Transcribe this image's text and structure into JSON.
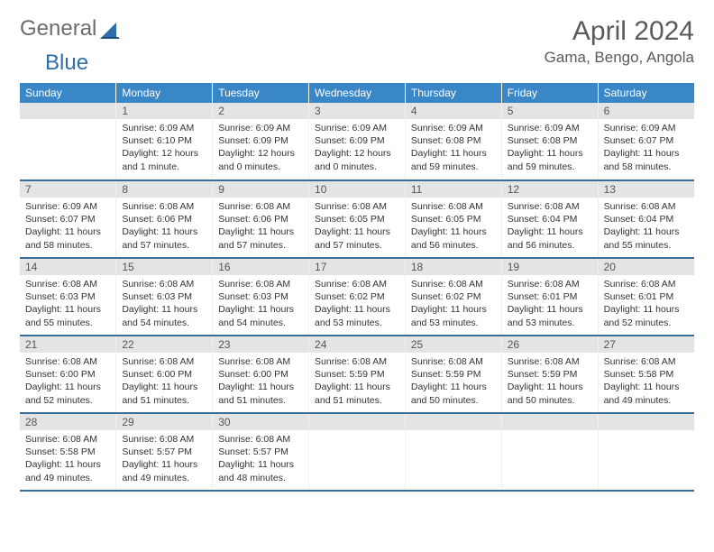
{
  "logo": {
    "text1": "General",
    "text2": "Blue"
  },
  "title": "April 2024",
  "subtitle": "Gama, Bengo, Angola",
  "colors": {
    "header_bg": "#3a87c8",
    "header_text": "#ffffff",
    "row_border": "#3a6d9a",
    "daynum_bg": "#e4e4e4",
    "daynum_text": "#555555",
    "body_text": "#333333",
    "logo_gray": "#6c6c6c",
    "logo_blue": "#2f6ea8",
    "title_color": "#5a5a5a"
  },
  "weekdays": [
    "Sunday",
    "Monday",
    "Tuesday",
    "Wednesday",
    "Thursday",
    "Friday",
    "Saturday"
  ],
  "weeks": [
    [
      {
        "n": "",
        "sr": "",
        "ss": "",
        "dl": ""
      },
      {
        "n": "1",
        "sr": "6:09 AM",
        "ss": "6:10 PM",
        "dl": "12 hours and 1 minute."
      },
      {
        "n": "2",
        "sr": "6:09 AM",
        "ss": "6:09 PM",
        "dl": "12 hours and 0 minutes."
      },
      {
        "n": "3",
        "sr": "6:09 AM",
        "ss": "6:09 PM",
        "dl": "12 hours and 0 minutes."
      },
      {
        "n": "4",
        "sr": "6:09 AM",
        "ss": "6:08 PM",
        "dl": "11 hours and 59 minutes."
      },
      {
        "n": "5",
        "sr": "6:09 AM",
        "ss": "6:08 PM",
        "dl": "11 hours and 59 minutes."
      },
      {
        "n": "6",
        "sr": "6:09 AM",
        "ss": "6:07 PM",
        "dl": "11 hours and 58 minutes."
      }
    ],
    [
      {
        "n": "7",
        "sr": "6:09 AM",
        "ss": "6:07 PM",
        "dl": "11 hours and 58 minutes."
      },
      {
        "n": "8",
        "sr": "6:08 AM",
        "ss": "6:06 PM",
        "dl": "11 hours and 57 minutes."
      },
      {
        "n": "9",
        "sr": "6:08 AM",
        "ss": "6:06 PM",
        "dl": "11 hours and 57 minutes."
      },
      {
        "n": "10",
        "sr": "6:08 AM",
        "ss": "6:05 PM",
        "dl": "11 hours and 57 minutes."
      },
      {
        "n": "11",
        "sr": "6:08 AM",
        "ss": "6:05 PM",
        "dl": "11 hours and 56 minutes."
      },
      {
        "n": "12",
        "sr": "6:08 AM",
        "ss": "6:04 PM",
        "dl": "11 hours and 56 minutes."
      },
      {
        "n": "13",
        "sr": "6:08 AM",
        "ss": "6:04 PM",
        "dl": "11 hours and 55 minutes."
      }
    ],
    [
      {
        "n": "14",
        "sr": "6:08 AM",
        "ss": "6:03 PM",
        "dl": "11 hours and 55 minutes."
      },
      {
        "n": "15",
        "sr": "6:08 AM",
        "ss": "6:03 PM",
        "dl": "11 hours and 54 minutes."
      },
      {
        "n": "16",
        "sr": "6:08 AM",
        "ss": "6:03 PM",
        "dl": "11 hours and 54 minutes."
      },
      {
        "n": "17",
        "sr": "6:08 AM",
        "ss": "6:02 PM",
        "dl": "11 hours and 53 minutes."
      },
      {
        "n": "18",
        "sr": "6:08 AM",
        "ss": "6:02 PM",
        "dl": "11 hours and 53 minutes."
      },
      {
        "n": "19",
        "sr": "6:08 AM",
        "ss": "6:01 PM",
        "dl": "11 hours and 53 minutes."
      },
      {
        "n": "20",
        "sr": "6:08 AM",
        "ss": "6:01 PM",
        "dl": "11 hours and 52 minutes."
      }
    ],
    [
      {
        "n": "21",
        "sr": "6:08 AM",
        "ss": "6:00 PM",
        "dl": "11 hours and 52 minutes."
      },
      {
        "n": "22",
        "sr": "6:08 AM",
        "ss": "6:00 PM",
        "dl": "11 hours and 51 minutes."
      },
      {
        "n": "23",
        "sr": "6:08 AM",
        "ss": "6:00 PM",
        "dl": "11 hours and 51 minutes."
      },
      {
        "n": "24",
        "sr": "6:08 AM",
        "ss": "5:59 PM",
        "dl": "11 hours and 51 minutes."
      },
      {
        "n": "25",
        "sr": "6:08 AM",
        "ss": "5:59 PM",
        "dl": "11 hours and 50 minutes."
      },
      {
        "n": "26",
        "sr": "6:08 AM",
        "ss": "5:59 PM",
        "dl": "11 hours and 50 minutes."
      },
      {
        "n": "27",
        "sr": "6:08 AM",
        "ss": "5:58 PM",
        "dl": "11 hours and 49 minutes."
      }
    ],
    [
      {
        "n": "28",
        "sr": "6:08 AM",
        "ss": "5:58 PM",
        "dl": "11 hours and 49 minutes."
      },
      {
        "n": "29",
        "sr": "6:08 AM",
        "ss": "5:57 PM",
        "dl": "11 hours and 49 minutes."
      },
      {
        "n": "30",
        "sr": "6:08 AM",
        "ss": "5:57 PM",
        "dl": "11 hours and 48 minutes."
      },
      {
        "n": "",
        "sr": "",
        "ss": "",
        "dl": ""
      },
      {
        "n": "",
        "sr": "",
        "ss": "",
        "dl": ""
      },
      {
        "n": "",
        "sr": "",
        "ss": "",
        "dl": ""
      },
      {
        "n": "",
        "sr": "",
        "ss": "",
        "dl": ""
      }
    ]
  ],
  "labels": {
    "sunrise": "Sunrise:",
    "sunset": "Sunset:",
    "daylight": "Daylight:"
  }
}
